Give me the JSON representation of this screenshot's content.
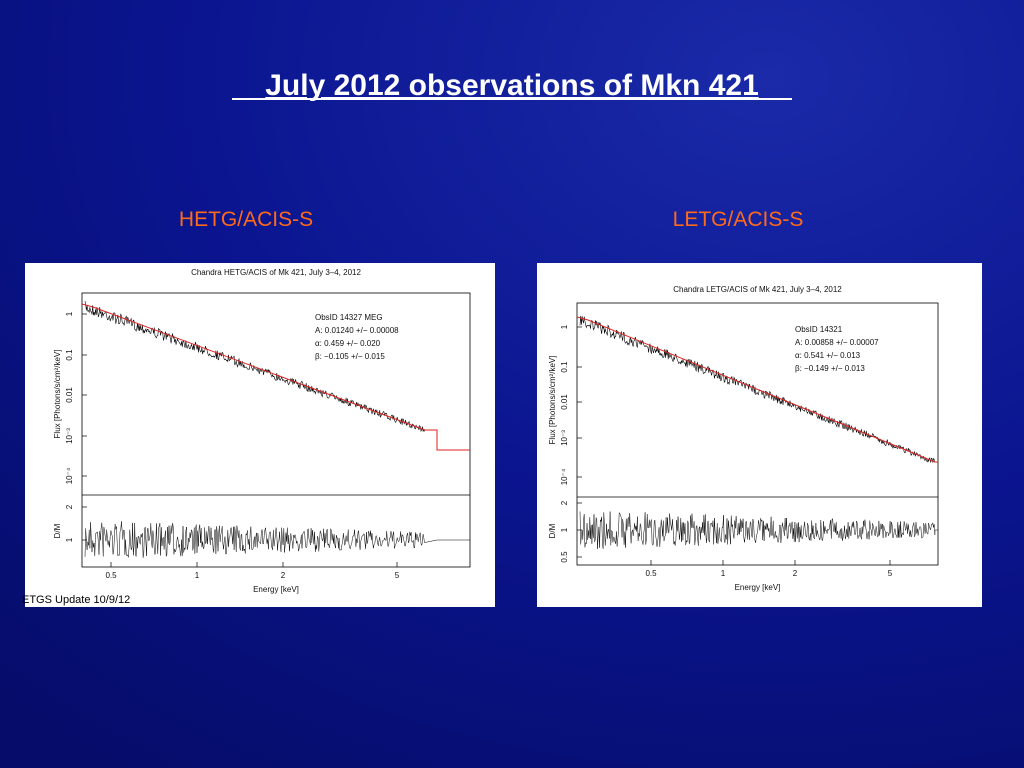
{
  "title": "July 2012 observations of Mkn 421",
  "panels": [
    {
      "label": "HETG/ACIS-S",
      "plot_title": "Chandra HETG/ACIS of Mk 421, July 3–4, 2012",
      "annotation": [
        "ObsID 14327 MEG",
        "A: 0.01240 +/− 0.00008",
        "α: 0.459 +/− 0.020",
        "β: −0.105 +/−  0.015"
      ],
      "y_label": "Flux [Photons/s/cm²/keV]",
      "y_ticks": [
        "1",
        "0.1",
        "0.01",
        "10⁻³",
        "10⁻⁴"
      ],
      "ratio_label": "D/M",
      "ratio_ticks": [
        "2",
        "1"
      ],
      "x_ticks": [
        "0.5",
        "1",
        "2",
        "5"
      ],
      "x_label": "Energy [keV]"
    },
    {
      "label": "LETG/ACIS-S",
      "plot_title": "Chandra LETG/ACIS of Mk 421, July 3–4, 2012",
      "annotation": [
        "ObsID 14321",
        "A: 0.00858 +/− 0.00007",
        "α: 0.541 +/− 0.013",
        "β: −0.149 +/−  0.013"
      ],
      "y_label": "Flux [Photons/s/cm²/keV]",
      "y_ticks": [
        "1",
        "0.1",
        "0.01",
        "10⁻³",
        "10⁻⁴"
      ],
      "ratio_label": "D/M",
      "ratio_ticks": [
        "2",
        "1",
        "0.5"
      ],
      "x_ticks": [
        "0.5",
        "1",
        "2",
        "5"
      ],
      "x_label": "Energy [keV]"
    }
  ],
  "footer": "ETGS Update 10/9/12"
}
